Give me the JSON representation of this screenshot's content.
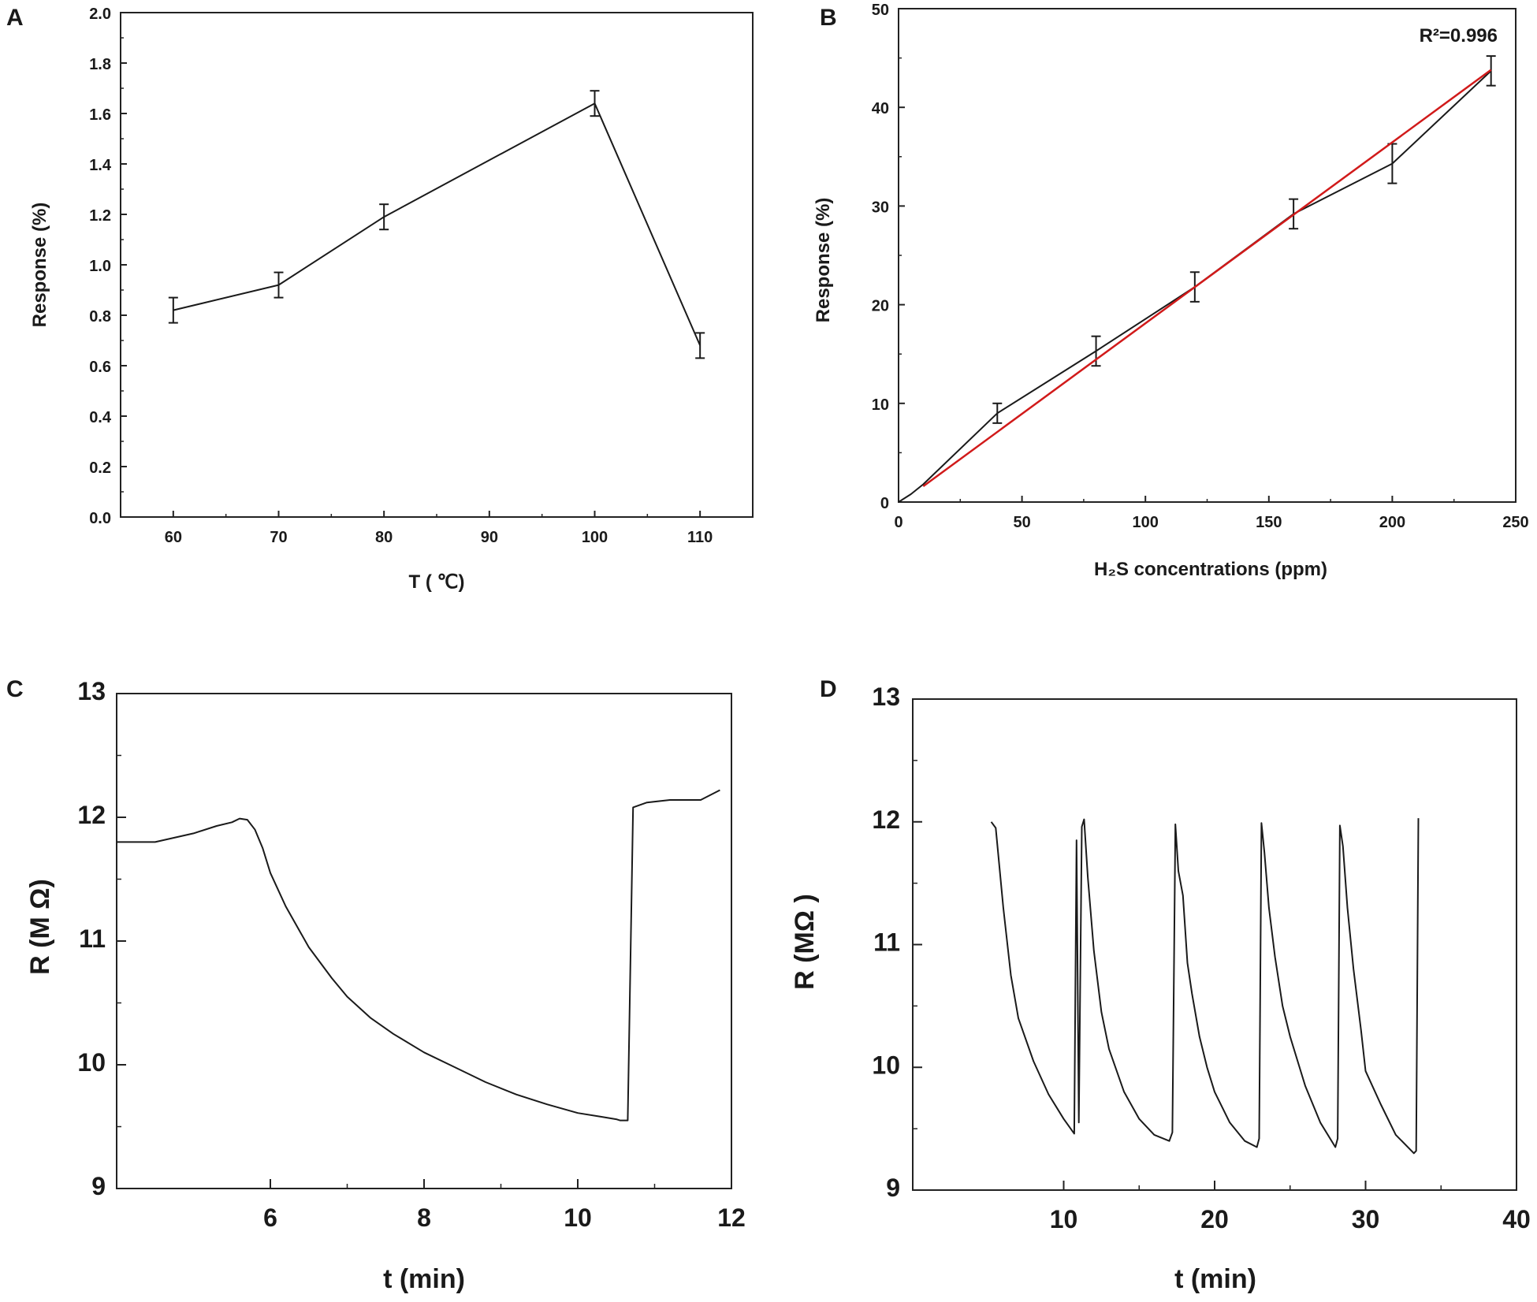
{
  "chart_data": [
    {
      "id": "A",
      "panel_label": "A",
      "type": "line",
      "xlabel": "T ( ℃)",
      "ylabel": "Response (%)",
      "xlim": [
        55,
        115
      ],
      "ylim": [
        0,
        2.0
      ],
      "xticks": [
        "60",
        "70",
        "80",
        "90",
        "100",
        "110"
      ],
      "yticks": [
        "0.0",
        "0.2",
        "0.4",
        "0.6",
        "0.8",
        "1.0",
        "1.2",
        "1.4",
        "1.6",
        "1.8",
        "2.0"
      ],
      "series": [
        {
          "name": "Response",
          "color": "#1a1a1a",
          "x": [
            60,
            70,
            80,
            100,
            110
          ],
          "y": [
            0.82,
            0.92,
            1.19,
            1.64,
            0.68
          ],
          "err": [
            0.05,
            0.05,
            0.05,
            0.05,
            0.05
          ]
        }
      ]
    },
    {
      "id": "B",
      "panel_label": "B",
      "type": "line",
      "xlabel": "H₂S concentrations (ppm)",
      "ylabel": "Response (%)",
      "xlim": [
        0,
        250
      ],
      "ylim": [
        0,
        50
      ],
      "xticks": [
        "0",
        "50",
        "100",
        "150",
        "200",
        "250"
      ],
      "yticks": [
        "0",
        "10",
        "20",
        "30",
        "40",
        "50"
      ],
      "annotation": "R²=0.996",
      "series": [
        {
          "name": "Response",
          "color": "#1a1a1a",
          "x": [
            0,
            5,
            10,
            40,
            80,
            120,
            160,
            200,
            240
          ],
          "y": [
            0,
            0.8,
            1.8,
            9.0,
            15.3,
            21.8,
            29.2,
            34.3,
            43.7
          ],
          "err": [
            0,
            0,
            0,
            1.0,
            1.5,
            1.5,
            1.5,
            2.0,
            1.5
          ]
        },
        {
          "name": "Linear fit",
          "color": "#d11a1a",
          "x": [
            10,
            240
          ],
          "y": [
            1.6,
            43.8
          ],
          "err": [
            0,
            0
          ]
        }
      ]
    },
    {
      "id": "C",
      "panel_label": "C",
      "type": "line",
      "xlabel": "t (min)",
      "ylabel": "R (M Ω)",
      "xlim": [
        4,
        12
      ],
      "ylim": [
        9,
        13
      ],
      "xticks": [
        "6",
        "8",
        "10",
        "12"
      ],
      "yticks": [
        "9",
        "10",
        "11",
        "12",
        "13"
      ],
      "series": [
        {
          "name": "Resistance",
          "color": "#1a1a1a",
          "x": [
            4.0,
            4.5,
            5.0,
            5.3,
            5.5,
            5.6,
            5.7,
            5.8,
            5.9,
            6.0,
            6.2,
            6.5,
            6.8,
            7.0,
            7.3,
            7.6,
            8.0,
            8.4,
            8.8,
            9.2,
            9.6,
            10.0,
            10.3,
            10.5,
            10.55,
            10.65,
            10.72,
            10.9,
            11.2,
            11.6,
            11.85
          ],
          "y": [
            11.8,
            11.8,
            11.87,
            11.93,
            11.96,
            11.99,
            11.98,
            11.9,
            11.75,
            11.55,
            11.28,
            10.95,
            10.7,
            10.55,
            10.38,
            10.25,
            10.1,
            9.98,
            9.86,
            9.76,
            9.68,
            9.61,
            9.58,
            9.56,
            9.55,
            9.55,
            12.08,
            12.12,
            12.14,
            12.14,
            12.22
          ]
        }
      ]
    },
    {
      "id": "D",
      "panel_label": "D",
      "type": "line",
      "xlabel": "t (min)",
      "ylabel": "R (MΩ )",
      "xlim": [
        0,
        40
      ],
      "ylim": [
        9,
        13
      ],
      "xticks": [
        "10",
        "20",
        "30",
        "40"
      ],
      "yticks": [
        "9",
        "10",
        "11",
        "12",
        "13"
      ],
      "series": [
        {
          "name": "Resistance",
          "color": "#1a1a1a",
          "x": [
            5.2,
            5.5,
            6.0,
            6.5,
            7.0,
            8.0,
            9.0,
            10.0,
            10.7,
            10.85,
            11.0,
            11.2,
            11.35,
            11.6,
            12.0,
            12.5,
            13.0,
            14.0,
            15.0,
            16.0,
            17.0,
            17.2,
            17.4,
            17.6,
            17.9,
            18.2,
            18.5,
            19.0,
            19.5,
            20.0,
            21.0,
            22.0,
            22.8,
            22.95,
            23.1,
            23.3,
            23.6,
            24.0,
            24.5,
            25.0,
            26.0,
            27.0,
            28.0,
            28.15,
            28.3,
            28.5,
            28.8,
            29.2,
            29.7,
            30.0,
            31.0,
            32.0,
            33.2,
            33.35,
            33.5
          ],
          "y": [
            12.0,
            11.95,
            11.3,
            10.75,
            10.4,
            10.05,
            9.78,
            9.58,
            9.46,
            11.85,
            9.55,
            11.96,
            12.02,
            11.55,
            10.95,
            10.45,
            10.15,
            9.8,
            9.58,
            9.45,
            9.4,
            9.47,
            11.98,
            11.6,
            11.4,
            10.85,
            10.6,
            10.25,
            10.0,
            9.8,
            9.55,
            9.4,
            9.35,
            9.42,
            11.99,
            11.75,
            11.3,
            10.9,
            10.5,
            10.25,
            9.85,
            9.55,
            9.35,
            9.42,
            11.97,
            11.8,
            11.3,
            10.8,
            10.3,
            9.97,
            9.7,
            9.45,
            9.3,
            9.32,
            12.03
          ]
        }
      ]
    }
  ]
}
